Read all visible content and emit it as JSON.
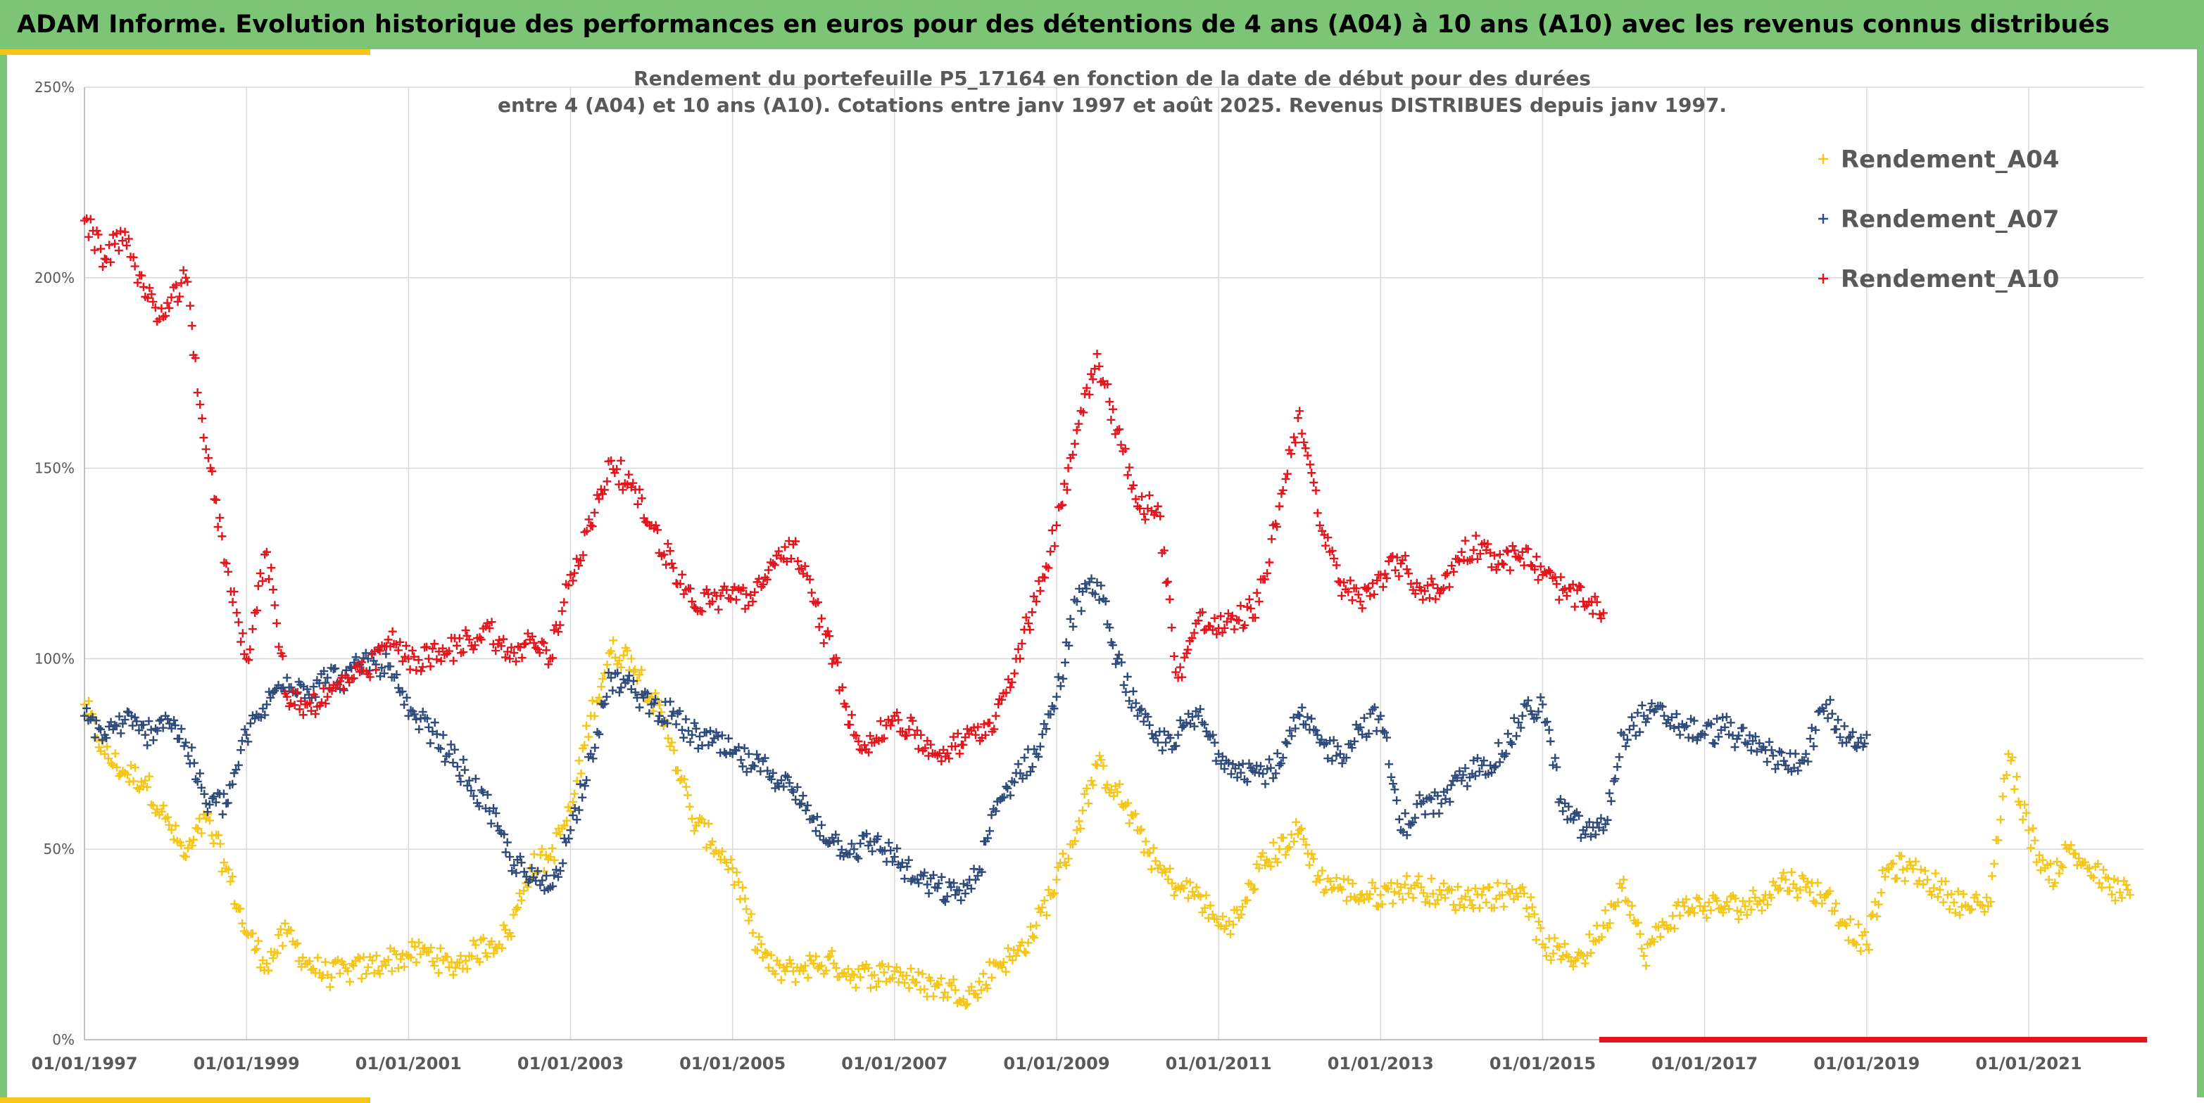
{
  "banner": {
    "title": "ADAM Informe. Evolution historique des performances en euros pour des détentions de 4 ans (A04) à 10 ans (A10) avec les revenus connus distribués"
  },
  "colors": {
    "banner": "#7cc576",
    "accent": "#f5c518",
    "A04": "#f5c518",
    "A07": "#2e4a7a",
    "A10": "#e3141b"
  },
  "chart_data": {
    "type": "scatter",
    "title_line1": "Rendement du portefeuille P5_17164 en fonction de la date de début pour des durées",
    "title_line2": "entre 4 (A04) et 10 ans (A10). Cotations entre janv 1997 et août 2025. Revenus DISTRIBUES depuis janv 1997.",
    "x_axis": {
      "type": "date",
      "min": "1997-01-01",
      "max": "2022-06-01"
    },
    "x_ticks": [
      "01/01/1997",
      "01/01/1999",
      "01/01/2001",
      "01/01/2003",
      "01/01/2005",
      "01/01/2007",
      "01/01/2009",
      "01/01/2011",
      "01/01/2013",
      "01/01/2015",
      "01/01/2017",
      "01/01/2019",
      "01/01/2021"
    ],
    "y_axis": {
      "min": 0,
      "max": 250,
      "unit": "%"
    },
    "y_ticks": [
      "0%",
      "50%",
      "100%",
      "150%",
      "200%",
      "250%"
    ],
    "grid": true,
    "marker": "+",
    "legend_position": "top-right",
    "series": [
      {
        "name": "Rendement_A04",
        "color": "#f5c518",
        "points": [
          [
            "1997-01",
            88
          ],
          [
            "1997-04",
            75
          ],
          [
            "1997-07",
            70
          ],
          [
            "1997-10",
            68
          ],
          [
            "1998-01",
            58
          ],
          [
            "1998-04",
            48
          ],
          [
            "1998-07",
            58
          ],
          [
            "1998-10",
            45
          ],
          [
            "1999-01",
            28
          ],
          [
            "1999-04",
            20
          ],
          [
            "1999-07",
            28
          ],
          [
            "1999-10",
            20
          ],
          [
            "2000-01",
            17
          ],
          [
            "2000-04",
            18
          ],
          [
            "2000-07",
            19
          ],
          [
            "2000-10",
            21
          ],
          [
            "2001-01",
            22
          ],
          [
            "2001-04",
            23
          ],
          [
            "2001-07",
            19
          ],
          [
            "2001-10",
            22
          ],
          [
            "2002-01",
            25
          ],
          [
            "2002-04",
            28
          ],
          [
            "2002-07",
            45
          ],
          [
            "2002-10",
            48
          ],
          [
            "2003-01",
            60
          ],
          [
            "2003-04",
            85
          ],
          [
            "2003-07",
            102
          ],
          [
            "2003-10",
            100
          ],
          [
            "2004-01",
            90
          ],
          [
            "2004-04",
            78
          ],
          [
            "2004-07",
            58
          ],
          [
            "2004-10",
            52
          ],
          [
            "2005-01",
            45
          ],
          [
            "2005-04",
            28
          ],
          [
            "2005-07",
            18
          ],
          [
            "2005-10",
            18
          ],
          [
            "2006-01",
            20
          ],
          [
            "2006-04",
            20
          ],
          [
            "2006-07",
            17
          ],
          [
            "2006-10",
            17
          ],
          [
            "2007-01",
            18
          ],
          [
            "2007-04",
            15
          ],
          [
            "2007-07",
            14
          ],
          [
            "2007-10",
            13
          ],
          [
            "2008-01",
            12
          ],
          [
            "2008-04",
            20
          ],
          [
            "2008-07",
            22
          ],
          [
            "2008-10",
            30
          ],
          [
            "2009-01",
            42
          ],
          [
            "2009-04",
            55
          ],
          [
            "2009-07",
            72
          ],
          [
            "2009-10",
            65
          ],
          [
            "2010-01",
            55
          ],
          [
            "2010-04",
            45
          ],
          [
            "2010-07",
            40
          ],
          [
            "2010-10",
            38
          ],
          [
            "2011-01",
            30
          ],
          [
            "2011-04",
            32
          ],
          [
            "2011-07",
            45
          ],
          [
            "2011-10",
            50
          ],
          [
            "2012-01",
            55
          ],
          [
            "2012-04",
            42
          ],
          [
            "2012-07",
            40
          ],
          [
            "2012-10",
            38
          ],
          [
            "2013-01",
            38
          ],
          [
            "2013-04",
            40
          ],
          [
            "2013-07",
            40
          ],
          [
            "2013-10",
            38
          ],
          [
            "2014-01",
            37
          ],
          [
            "2014-04",
            38
          ],
          [
            "2014-07",
            38
          ],
          [
            "2014-10",
            40
          ],
          [
            "2015-01",
            25
          ],
          [
            "2015-04",
            22
          ],
          [
            "2015-07",
            22
          ],
          [
            "2015-10",
            30
          ],
          [
            "2016-01",
            42
          ],
          [
            "2016-04",
            22
          ],
          [
            "2016-07",
            30
          ],
          [
            "2016-10",
            35
          ],
          [
            "2017-01",
            35
          ],
          [
            "2017-04",
            35
          ],
          [
            "2017-07",
            35
          ],
          [
            "2017-10",
            38
          ],
          [
            "2018-01",
            42
          ],
          [
            "2018-04",
            40
          ],
          [
            "2018-07",
            38
          ],
          [
            "2018-10",
            30
          ],
          [
            "2019-01",
            25
          ],
          [
            "2019-04",
            45
          ],
          [
            "2019-07",
            45
          ],
          [
            "2019-10",
            42
          ],
          [
            "2020-01",
            38
          ],
          [
            "2020-04",
            35
          ],
          [
            "2020-07",
            35
          ],
          [
            "2020-10",
            75
          ],
          [
            "2021-01",
            55
          ],
          [
            "2021-04",
            42
          ],
          [
            "2021-07",
            50
          ],
          [
            "2021-10",
            45
          ],
          [
            "2022-01",
            40
          ],
          [
            "2022-04",
            38
          ]
        ]
      },
      {
        "name": "Rendement_A07",
        "color": "#2e4a7a",
        "points": [
          [
            "1997-01",
            85
          ],
          [
            "1997-04",
            80
          ],
          [
            "1997-07",
            84
          ],
          [
            "1997-10",
            80
          ],
          [
            "1998-01",
            85
          ],
          [
            "1998-04",
            78
          ],
          [
            "1998-07",
            62
          ],
          [
            "1998-10",
            62
          ],
          [
            "1999-01",
            80
          ],
          [
            "1999-04",
            88
          ],
          [
            "1999-07",
            95
          ],
          [
            "1999-10",
            92
          ],
          [
            "2000-01",
            95
          ],
          [
            "2000-04",
            95
          ],
          [
            "2000-07",
            100
          ],
          [
            "2000-10",
            98
          ],
          [
            "2001-01",
            85
          ],
          [
            "2001-04",
            82
          ],
          [
            "2001-07",
            75
          ],
          [
            "2001-10",
            68
          ],
          [
            "2002-01",
            60
          ],
          [
            "2002-04",
            48
          ],
          [
            "2002-07",
            42
          ],
          [
            "2002-10",
            40
          ],
          [
            "2003-01",
            55
          ],
          [
            "2003-04",
            75
          ],
          [
            "2003-07",
            95
          ],
          [
            "2003-10",
            92
          ],
          [
            "2004-01",
            88
          ],
          [
            "2004-04",
            85
          ],
          [
            "2004-07",
            80
          ],
          [
            "2004-10",
            78
          ],
          [
            "2005-01",
            75
          ],
          [
            "2005-04",
            72
          ],
          [
            "2005-07",
            70
          ],
          [
            "2005-10",
            65
          ],
          [
            "2006-01",
            58
          ],
          [
            "2006-04",
            52
          ],
          [
            "2006-07",
            50
          ],
          [
            "2006-10",
            52
          ],
          [
            "2007-01",
            48
          ],
          [
            "2007-04",
            42
          ],
          [
            "2007-07",
            40
          ],
          [
            "2007-10",
            38
          ],
          [
            "2008-01",
            42
          ],
          [
            "2008-04",
            60
          ],
          [
            "2008-07",
            70
          ],
          [
            "2008-10",
            75
          ],
          [
            "2009-01",
            90
          ],
          [
            "2009-04",
            115
          ],
          [
            "2009-07",
            120
          ],
          [
            "2009-10",
            100
          ],
          [
            "2010-01",
            85
          ],
          [
            "2010-04",
            78
          ],
          [
            "2010-07",
            80
          ],
          [
            "2010-10",
            85
          ],
          [
            "2011-01",
            75
          ],
          [
            "2011-04",
            72
          ],
          [
            "2011-07",
            70
          ],
          [
            "2011-10",
            72
          ],
          [
            "2012-01",
            85
          ],
          [
            "2012-04",
            78
          ],
          [
            "2012-07",
            75
          ],
          [
            "2012-10",
            82
          ],
          [
            "2013-01",
            85
          ],
          [
            "2013-04",
            55
          ],
          [
            "2013-07",
            62
          ],
          [
            "2013-10",
            62
          ],
          [
            "2014-01",
            68
          ],
          [
            "2014-04",
            72
          ],
          [
            "2014-07",
            75
          ],
          [
            "2014-10",
            85
          ],
          [
            "2015-01",
            88
          ],
          [
            "2015-04",
            60
          ],
          [
            "2015-07",
            55
          ],
          [
            "2015-10",
            55
          ],
          [
            "2016-01",
            80
          ],
          [
            "2016-04",
            85
          ],
          [
            "2016-07",
            85
          ],
          [
            "2016-10",
            82
          ],
          [
            "2017-01",
            80
          ],
          [
            "2017-04",
            82
          ],
          [
            "2017-07",
            78
          ],
          [
            "2017-10",
            76
          ],
          [
            "2018-01",
            72
          ],
          [
            "2018-04",
            75
          ],
          [
            "2018-07",
            88
          ],
          [
            "2018-10",
            78
          ],
          [
            "2019-01",
            80
          ]
        ]
      },
      {
        "name": "Rendement_A10",
        "color": "#e3141b",
        "points": [
          [
            "1997-01",
            215
          ],
          [
            "1997-04",
            205
          ],
          [
            "1997-07",
            212
          ],
          [
            "1997-10",
            195
          ],
          [
            "1998-01",
            190
          ],
          [
            "1998-04",
            200
          ],
          [
            "1998-07",
            155
          ],
          [
            "1998-10",
            125
          ],
          [
            "1999-01",
            100
          ],
          [
            "1999-04",
            128
          ],
          [
            "1999-07",
            90
          ],
          [
            "1999-10",
            88
          ],
          [
            "2000-01",
            90
          ],
          [
            "2000-04",
            95
          ],
          [
            "2000-07",
            96
          ],
          [
            "2000-10",
            105
          ],
          [
            "2001-01",
            100
          ],
          [
            "2001-04",
            100
          ],
          [
            "2001-07",
            102
          ],
          [
            "2001-10",
            105
          ],
          [
            "2002-01",
            108
          ],
          [
            "2002-04",
            100
          ],
          [
            "2002-07",
            105
          ],
          [
            "2002-10",
            100
          ],
          [
            "2003-01",
            122
          ],
          [
            "2003-04",
            135
          ],
          [
            "2003-07",
            152
          ],
          [
            "2003-10",
            145
          ],
          [
            "2004-01",
            135
          ],
          [
            "2004-04",
            125
          ],
          [
            "2004-07",
            115
          ],
          [
            "2004-10",
            115
          ],
          [
            "2005-01",
            118
          ],
          [
            "2005-04",
            115
          ],
          [
            "2005-07",
            125
          ],
          [
            "2005-10",
            130
          ],
          [
            "2006-01",
            115
          ],
          [
            "2006-04",
            100
          ],
          [
            "2006-07",
            80
          ],
          [
            "2006-10",
            78
          ],
          [
            "2007-01",
            85
          ],
          [
            "2007-04",
            80
          ],
          [
            "2007-07",
            75
          ],
          [
            "2007-10",
            77
          ],
          [
            "2008-01",
            80
          ],
          [
            "2008-04",
            85
          ],
          [
            "2008-07",
            100
          ],
          [
            "2008-10",
            115
          ],
          [
            "2009-01",
            135
          ],
          [
            "2009-04",
            160
          ],
          [
            "2009-07",
            180
          ],
          [
            "2009-10",
            160
          ],
          [
            "2010-01",
            140
          ],
          [
            "2010-04",
            140
          ],
          [
            "2010-07",
            95
          ],
          [
            "2010-10",
            110
          ],
          [
            "2011-01",
            108
          ],
          [
            "2011-04",
            110
          ],
          [
            "2011-07",
            115
          ],
          [
            "2011-10",
            140
          ],
          [
            "2012-01",
            165
          ],
          [
            "2012-04",
            135
          ],
          [
            "2012-07",
            120
          ],
          [
            "2012-10",
            115
          ],
          [
            "2013-01",
            122
          ],
          [
            "2013-04",
            125
          ],
          [
            "2013-07",
            118
          ],
          [
            "2013-10",
            118
          ],
          [
            "2014-01",
            128
          ],
          [
            "2014-04",
            130
          ],
          [
            "2014-07",
            125
          ],
          [
            "2014-10",
            128
          ],
          [
            "2015-01",
            122
          ],
          [
            "2015-04",
            118
          ],
          [
            "2015-07",
            115
          ],
          [
            "2015-10",
            112
          ]
        ]
      }
    ],
    "zero_band": {
      "color": "#e3141b",
      "from": "2015-10-01",
      "to": "2022-06-01",
      "value": 0
    }
  }
}
